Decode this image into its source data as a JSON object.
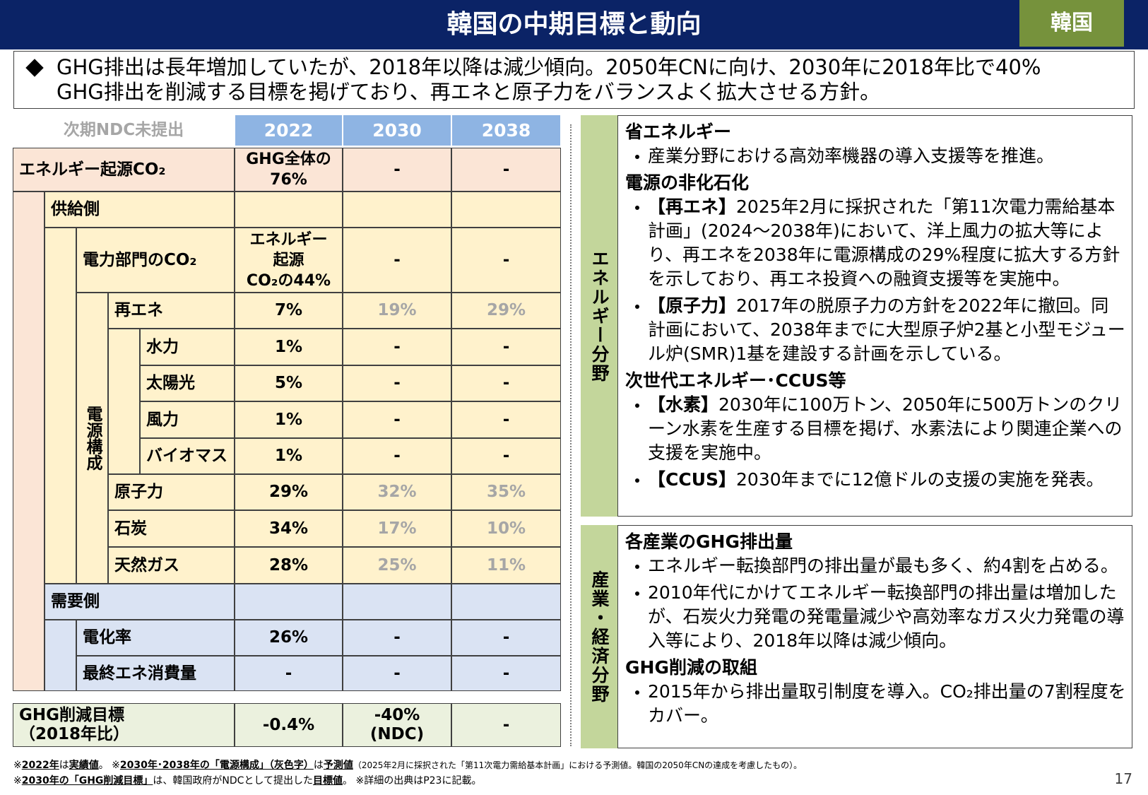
{
  "header": {
    "title": "韓国の中期目標と動向",
    "badge": "韓国"
  },
  "summary": [
    "GHG排出は長年増加していたが、2018年以降は減少傾向。2050年CNに向け、2030年に2018年比で40%",
    "GHG排出を削減する目標を掲げており、再エネと原子力をバランスよく拡大させる方針。"
  ],
  "table": {
    "note": "次期NDC未提出",
    "columns": [
      "2022",
      "2030",
      "2038"
    ],
    "group_label": "電源構成",
    "rows": [
      {
        "label": "エネルギー起源CO₂",
        "level": 0,
        "group": "energy",
        "values": [
          "GHG全体の\n76%",
          "-",
          "-"
        ]
      },
      {
        "label": "供給側",
        "level": 1,
        "group": "supply"
      },
      {
        "label": "電力部門のCO₂",
        "level": 2,
        "group": "supply",
        "values": [
          "エネルギー\n起源\nCO₂の44%",
          "-",
          "-"
        ]
      },
      {
        "label": "再エネ",
        "level": 3,
        "group": "supply",
        "forecast": true,
        "values": [
          "7%",
          "19%",
          "29%"
        ]
      },
      {
        "label": "水力",
        "level": 4,
        "group": "supply",
        "values": [
          "1%",
          "-",
          "-"
        ]
      },
      {
        "label": "太陽光",
        "level": 4,
        "group": "supply",
        "values": [
          "5%",
          "-",
          "-"
        ]
      },
      {
        "label": "風力",
        "level": 4,
        "group": "supply",
        "values": [
          "1%",
          "-",
          "-"
        ]
      },
      {
        "label": "バイオマス",
        "level": 4,
        "group": "supply",
        "values": [
          "1%",
          "-",
          "-"
        ]
      },
      {
        "label": "原子力",
        "level": 3,
        "group": "supply",
        "forecast": true,
        "values": [
          "29%",
          "32%",
          "35%"
        ]
      },
      {
        "label": "石炭",
        "level": 3,
        "group": "supply",
        "forecast": true,
        "values": [
          "34%",
          "17%",
          "10%"
        ]
      },
      {
        "label": "天然ガス",
        "level": 3,
        "group": "supply",
        "forecast": true,
        "values": [
          "28%",
          "25%",
          "11%"
        ]
      },
      {
        "label": "需要側",
        "level": 1,
        "group": "demand"
      },
      {
        "label": "電化率",
        "level": 2,
        "group": "demand",
        "values": [
          "26%",
          "-",
          "-"
        ]
      },
      {
        "label": "最終エネ消費量",
        "level": 2,
        "group": "demand",
        "values": [
          "-",
          "-",
          "-"
        ]
      }
    ],
    "target": {
      "label": "GHG削減目標\n（2018年比）",
      "values": [
        "-0.4%",
        "-40%\n(NDC)",
        "-"
      ]
    }
  },
  "panels": [
    {
      "side_label": "エネルギー分野",
      "sections": [
        {
          "heading": "省エネルギー",
          "bullets": [
            {
              "text": "産業分野における高効率機器の導入支援等を推進。"
            }
          ]
        },
        {
          "heading": "電源の非化石化",
          "bullets": [
            {
              "tag": "【再エネ】",
              "text": "2025年2月に採択された「第11次電力需給基本計画」(2024～2038年)において、洋上風力の拡大等により、再エネを2038年に電源構成の29%程度に拡大する方針を示しており、再エネ投資への融資支援等を実施中。"
            },
            {
              "tag": "【原子力】",
              "text": "2017年の脱原子力の方針を2022年に撤回。同計画において、2038年までに大型原子炉2基と小型モジュール炉(SMR)1基を建設する計画を示している。"
            }
          ]
        },
        {
          "heading": "次世代エネルギー･CCUS等",
          "bullets": [
            {
              "tag": "【水素】",
              "text": "2030年に100万トン、2050年に500万トンのクリーン水素を生産する目標を掲げ、水素法により関連企業への支援を実施中。"
            },
            {
              "tag": "【CCUS】",
              "text": "2030年までに12億ドルの支援の実施を発表。"
            }
          ]
        }
      ]
    },
    {
      "side_label": "産業・経済分野",
      "sections": [
        {
          "heading": "各産業のGHG排出量",
          "bullets": [
            {
              "text": "エネルギー転換部門の排出量が最も多く、約4割を占める。"
            },
            {
              "text": "2010年代にかけてエネルギー転換部門の排出量は増加したが、石炭火力発電の発電量減少や高効率なガス火力発電の導入等により、2018年以降は減少傾向。"
            }
          ]
        },
        {
          "heading": "GHG削減の取組",
          "bullets": [
            {
              "text": "2015年から排出量取引制度を導入。CO₂排出量の7割程度をカバー。"
            }
          ]
        }
      ]
    }
  ],
  "notes": [
    [
      {
        "text": "※"
      },
      {
        "text": "2022年",
        "bold": true
      },
      {
        "text": "は"
      },
      {
        "text": "実績値",
        "bold": true
      },
      {
        "text": "。 ※"
      },
      {
        "text": "2030年･2038年の「電源構成」（灰色字）",
        "bold": true
      },
      {
        "text": "は"
      },
      {
        "text": "予測値",
        "bold": true
      },
      {
        "text": "（2025年2月に採択された「第11次電力需給基本計画」における予測値。韓国の2050年CNの達成を考慮したもの）。",
        "small": true
      }
    ],
    [
      {
        "text": "※"
      },
      {
        "text": "2030年の「GHG削減目標」",
        "bold": true
      },
      {
        "text": "は、韓国政府がNDCとして提出した"
      },
      {
        "text": "目標値",
        "bold": true
      },
      {
        "text": "。 ※詳細の出典はP23に記載。"
      }
    ]
  ],
  "page_number": "17"
}
